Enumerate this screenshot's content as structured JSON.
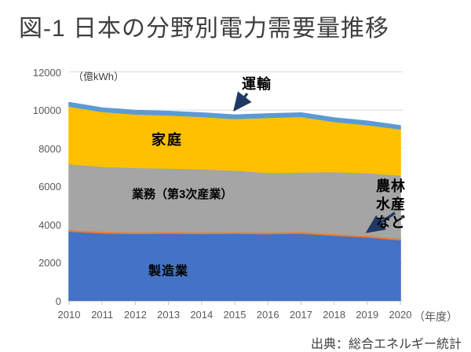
{
  "title": "図-1 日本の分野別電力需要量推移",
  "source": "出典：総合エネルギー統計",
  "chart_data": {
    "type": "area",
    "stacked": true,
    "title": "図-1 日本の分野別電力需要量推移",
    "unit_label": "（億kWh）",
    "xaxis_suffix": "（年度）",
    "xlabel": "年度",
    "ylabel": "億kWh",
    "ylim": [
      0,
      12000
    ],
    "yticks": [
      "0",
      "2000",
      "4000",
      "6000",
      "8000",
      "10000",
      "12000"
    ],
    "grid": true,
    "legend_position": "none (direct area labels with arrows)",
    "categories": [
      "2010",
      "2011",
      "2012",
      "2013",
      "2014",
      "2015",
      "2016",
      "2017",
      "2018",
      "2019",
      "2020"
    ],
    "series": [
      {
        "name": "製造業",
        "color": "#4472C4",
        "values": [
          3650,
          3560,
          3530,
          3550,
          3530,
          3540,
          3520,
          3550,
          3440,
          3350,
          3200
        ]
      },
      {
        "name": "農林水産など",
        "name_lines": [
          "農林",
          "水産",
          "など"
        ],
        "color": "#ED7D31",
        "values": [
          90,
          90,
          90,
          90,
          90,
          90,
          90,
          90,
          90,
          90,
          90
        ]
      },
      {
        "name": "業務（第3次産業）",
        "color": "#A5A5A5",
        "values": [
          3450,
          3400,
          3370,
          3320,
          3300,
          3220,
          3120,
          3110,
          3240,
          3280,
          3300
        ]
      },
      {
        "name": "家庭",
        "color": "#FFC000",
        "values": [
          3010,
          2870,
          2800,
          2780,
          2740,
          2700,
          2880,
          2910,
          2630,
          2510,
          2420
        ]
      },
      {
        "name": "運輸",
        "color": "#5B9BD5",
        "values": [
          190,
          190,
          190,
          190,
          190,
          190,
          190,
          190,
          190,
          190,
          170
        ]
      }
    ],
    "annotations": [
      {
        "text": "運輸",
        "arrow": true,
        "points_to": "thin blue band at top of stack"
      },
      {
        "text": "農林水産など",
        "arrow": true,
        "points_to": "thin orange band between blue and gray areas"
      }
    ],
    "colors": {
      "gridline": "#D9D9D9",
      "axis_text": "#595959",
      "annotation_arrow": "#1F3864",
      "title_text": "#3F3F3F"
    }
  }
}
